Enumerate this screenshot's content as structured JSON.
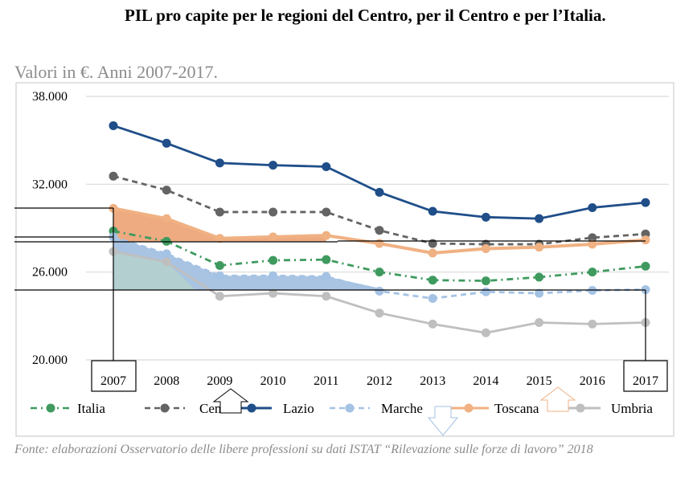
{
  "title": "PIL pro capite per le regioni del Centro, per il Centro e per l’Italia.",
  "subtitle": "Valori in €. Anni 2007-2017.",
  "footer": "Fonte: elaborazioni Osservatorio delle libere professioni su dati ISTAT “Rilevazione sulle forze di lavoro” 2018",
  "chart_data": {
    "type": "line",
    "title": "PIL pro capite per le regioni del Centro, per il Centro e per l’Italia.",
    "xlabel": "",
    "ylabel": "",
    "x": [
      "2007",
      "2008",
      "2009",
      "2010",
      "2011",
      "2012",
      "2013",
      "2014",
      "2015",
      "2016",
      "2017"
    ],
    "ylim": [
      20000,
      38000
    ],
    "yticks": [
      20000,
      26000,
      32000,
      38000
    ],
    "ytick_labels": [
      "20.000",
      "26.000",
      "32.000",
      "38.000"
    ],
    "grid": true,
    "legend_position": "bottom",
    "series": [
      {
        "name": "Italia",
        "color": "#3f9a5f",
        "dash": "dashdot",
        "values": [
          28800,
          28100,
          26450,
          26800,
          26850,
          26000,
          25450,
          25400,
          25650,
          26000,
          26400
        ]
      },
      {
        "name": "Centro",
        "color": "#646464",
        "dash": "dash",
        "values": [
          32550,
          31600,
          30100,
          30100,
          30100,
          28850,
          27950,
          27900,
          27900,
          28350,
          28600
        ]
      },
      {
        "name": "Lazio",
        "color": "#1f4e89",
        "dash": "solid",
        "values": [
          36000,
          34800,
          33450,
          33300,
          33200,
          31450,
          30150,
          29750,
          29650,
          30400,
          30750
        ]
      },
      {
        "name": "Marche",
        "color": "#a4c2e4",
        "dash": "dash",
        "values": [
          28400,
          27250,
          25750,
          25750,
          25700,
          24700,
          24200,
          24650,
          24550,
          24750,
          24800
        ]
      },
      {
        "name": "Toscana",
        "color": "#f0b183",
        "dash": "solid",
        "values": [
          30350,
          29650,
          28300,
          28400,
          28500,
          27950,
          27300,
          27600,
          27700,
          27900,
          28200
        ]
      },
      {
        "name": "Umbria",
        "color": "#bfbfbf",
        "dash": "solid",
        "values": [
          27400,
          26700,
          24350,
          24550,
          24350,
          23200,
          22450,
          21850,
          22550,
          22450,
          22550
        ]
      }
    ]
  }
}
